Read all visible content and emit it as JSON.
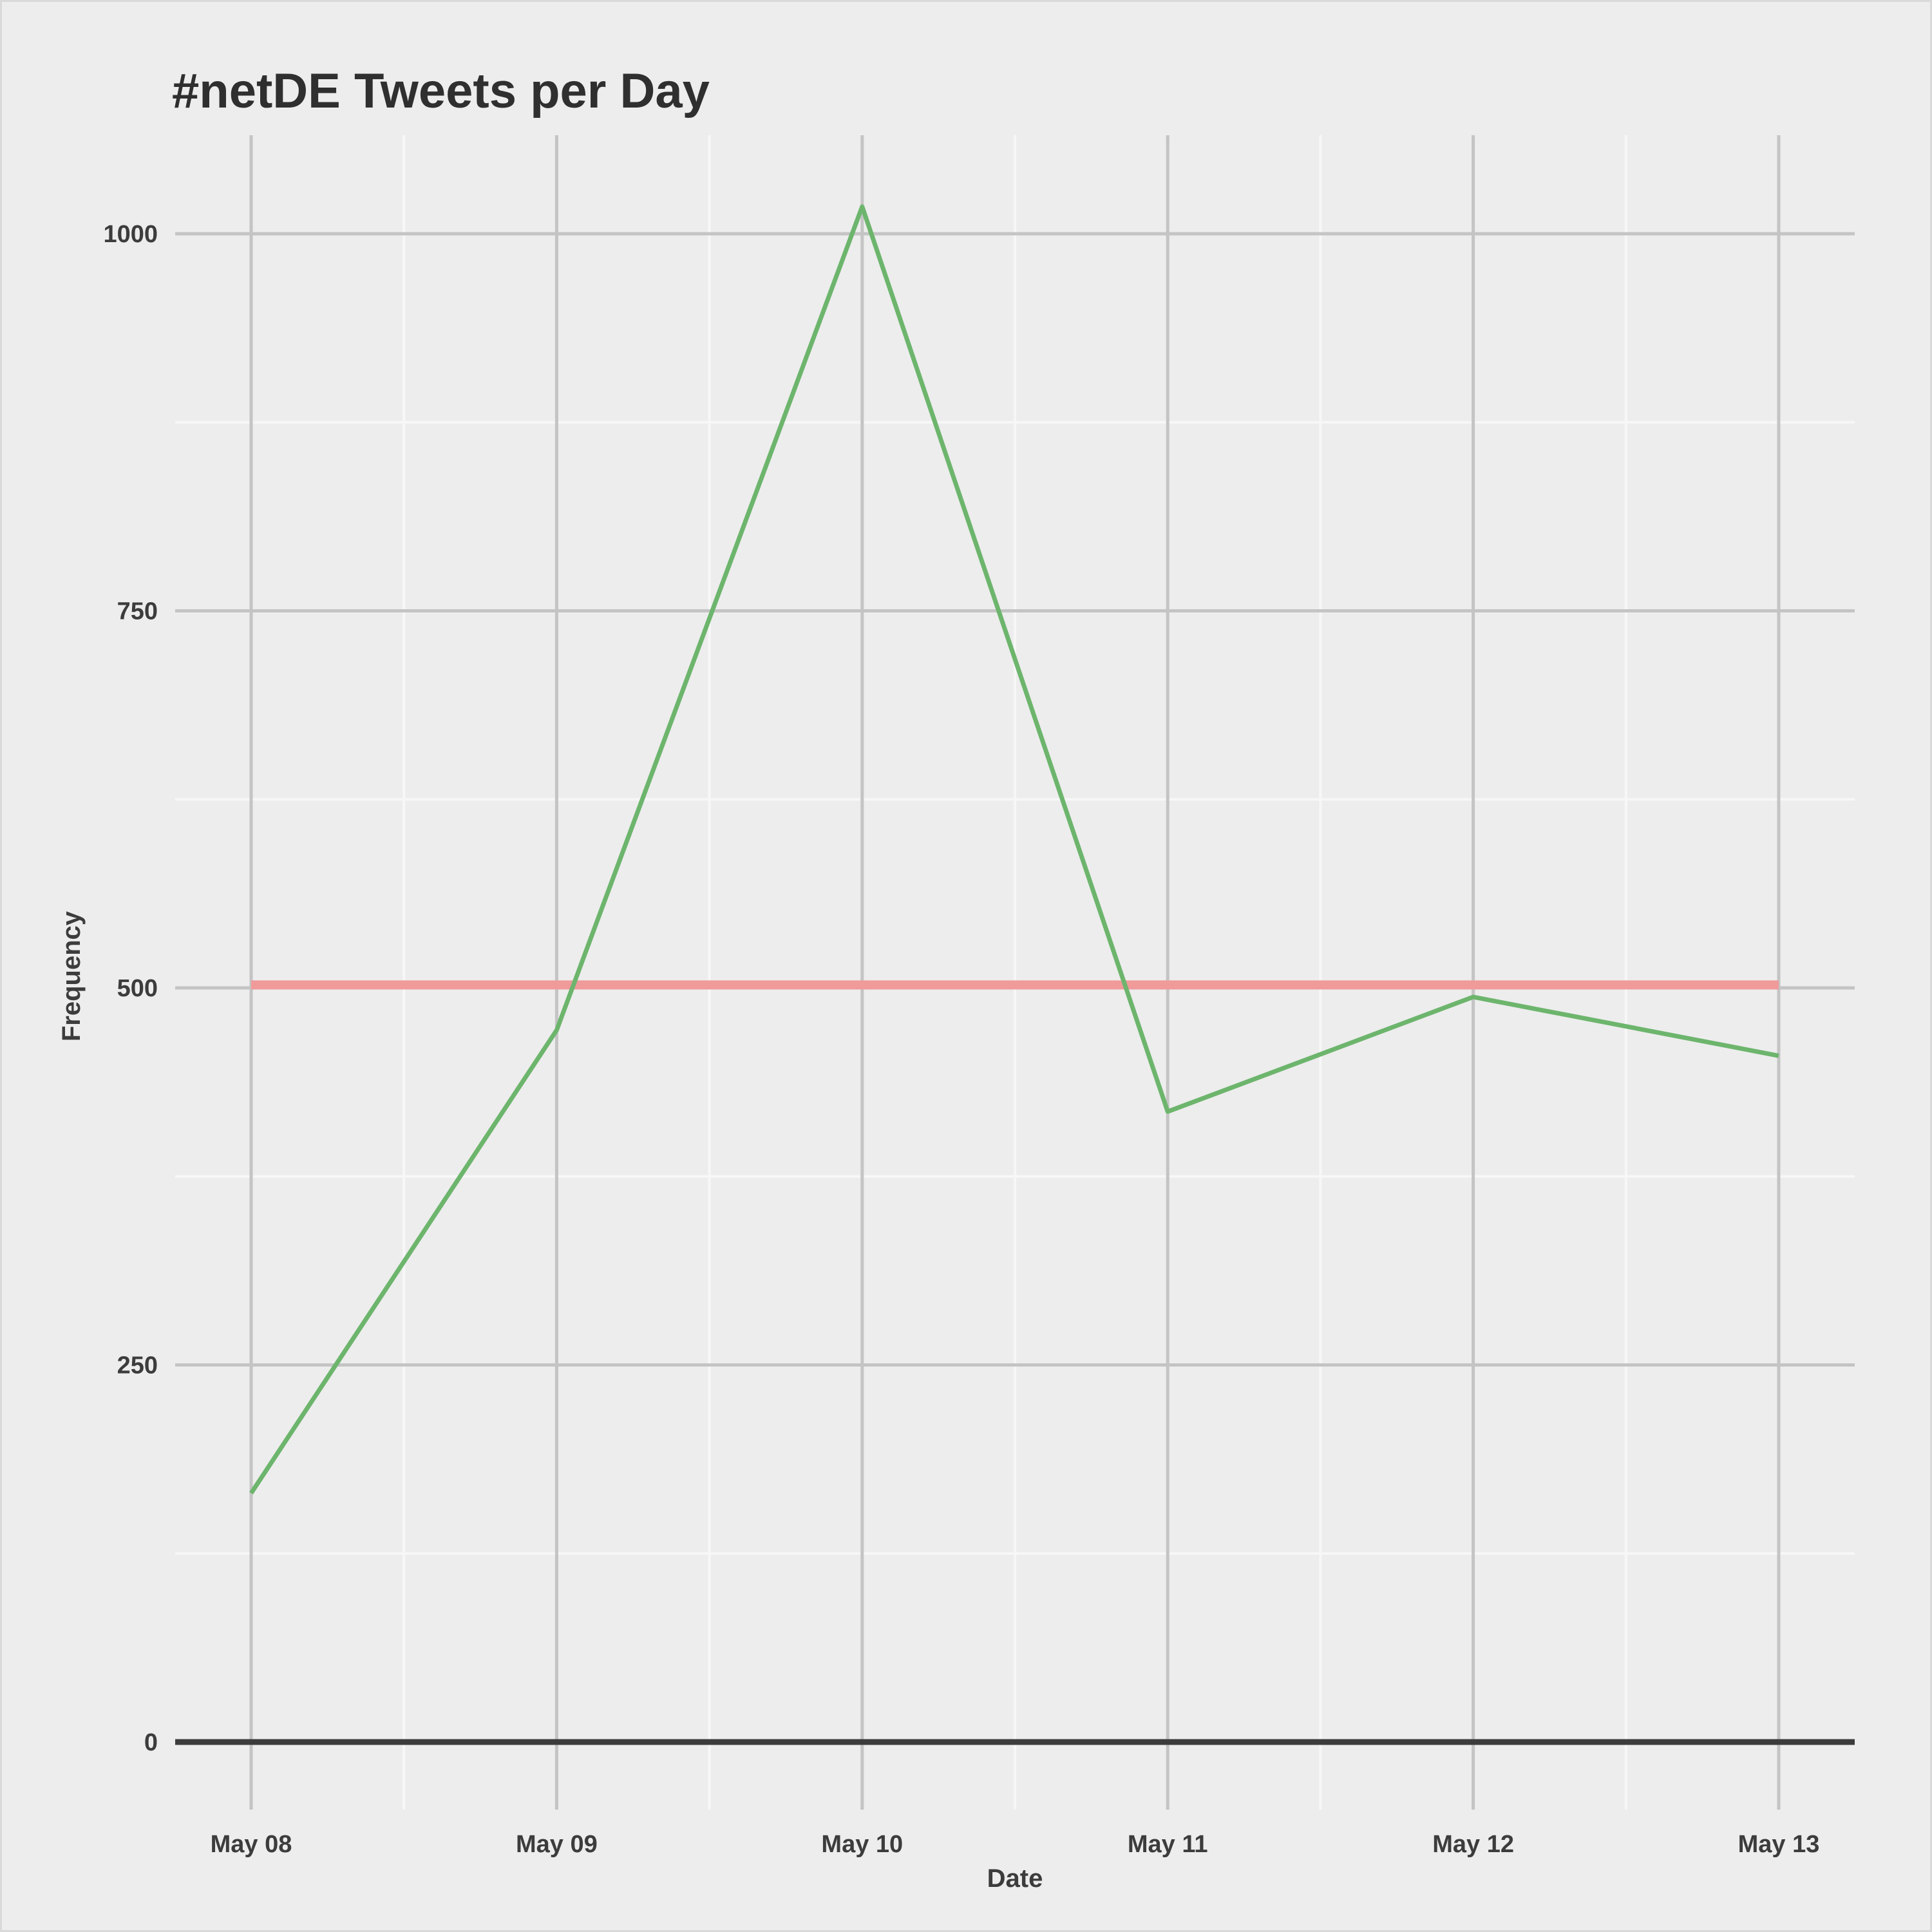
{
  "chart_data": {
    "type": "line",
    "title": "#netDE Tweets per Day",
    "xlabel": "Date",
    "ylabel": "Frequency",
    "x": [
      "May 08",
      "May 09",
      "May 10",
      "May 11",
      "May 12",
      "May 13"
    ],
    "series": [
      {
        "values": [
          165,
          472,
          1018,
          418,
          494,
          455
        ],
        "color": "#6db56d"
      },
      {
        "values": [
          502,
          502,
          502,
          502,
          502,
          502
        ],
        "color": "#f09a9a"
      }
    ],
    "ylim": [
      0,
      1000
    ],
    "y_ticks": [
      0,
      250,
      500,
      750,
      1000
    ],
    "x_tick_labels": [
      "May 08",
      "May 09",
      "May 10",
      "May 11",
      "May 12",
      "May 13"
    ],
    "y_tick_labels": [
      "0",
      "250",
      "500",
      "750",
      "1000"
    ],
    "grid": true,
    "legend": "none",
    "colors": {
      "background": "#ededed",
      "major_grid": "#c4c4c4",
      "minor_grid": "#f7f7f7",
      "baseline": "#3c3c3c",
      "text": "#3c3c3c",
      "title": "#2f2f2f"
    }
  }
}
